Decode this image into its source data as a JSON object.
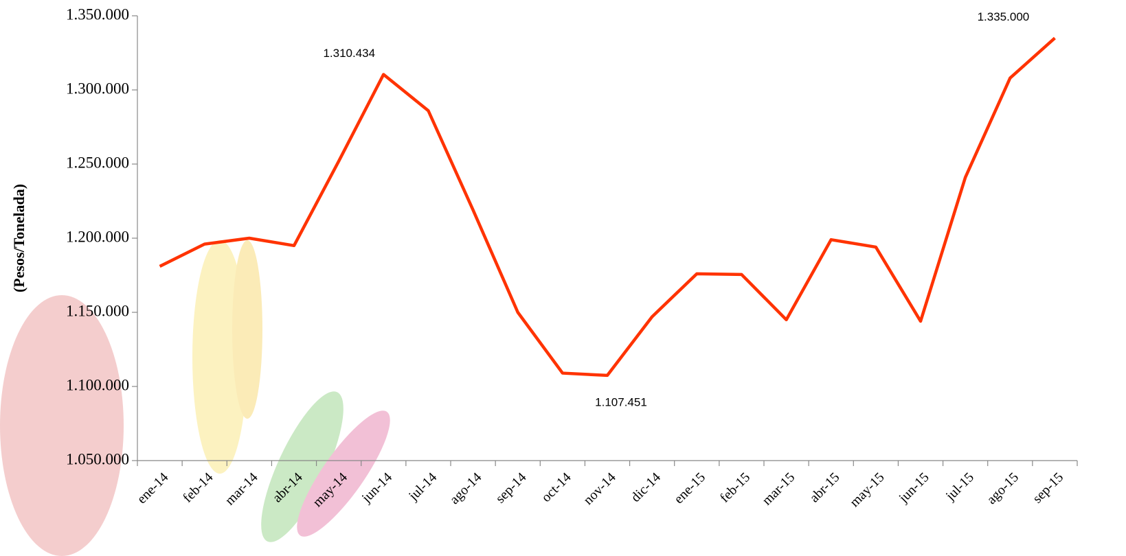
{
  "chart_data": {
    "type": "line",
    "y_label": "(Pesos/Tonelada)",
    "categories": [
      "ene-14",
      "feb-14",
      "mar-14",
      "abr-14",
      "may-14",
      "jun-14",
      "jul-14",
      "ago-14",
      "sep-14",
      "oct-14",
      "nov-14",
      "dic-14",
      "ene-15",
      "feb-15",
      "mar-15",
      "abr-15",
      "may-15",
      "jun-15",
      "jul-15",
      "ago-15",
      "sep-15"
    ],
    "series": [
      {
        "color": "#ff3300",
        "values": [
          1181000,
          1196000,
          1200000,
          1195000,
          1252000,
          1310434,
          1286000,
          1219000,
          1150000,
          1109000,
          1107451,
          1147000,
          1176000,
          1175500,
          1145000,
          1199000,
          1194000,
          1144000,
          1241000,
          1308000,
          1335000
        ],
        "value_labels": [
          null,
          null,
          null,
          null,
          null,
          "1.310.434",
          null,
          null,
          null,
          null,
          "1.107.451",
          null,
          null,
          null,
          null,
          null,
          null,
          null,
          null,
          null,
          "1.335.000"
        ]
      }
    ],
    "ylim": [
      1050000,
      1350000
    ],
    "yticks": [
      {
        "value": 1050000,
        "label": "1.050.000"
      },
      {
        "value": 1100000,
        "label": "1.100.000"
      },
      {
        "value": 1150000,
        "label": "1.150.000"
      },
      {
        "value": 1200000,
        "label": "1.200.000"
      },
      {
        "value": 1250000,
        "label": "1.250.000"
      },
      {
        "value": 1300000,
        "label": "1.300.000"
      },
      {
        "value": 1350000,
        "label": "1.350.000"
      }
    ],
    "grid": false
  }
}
